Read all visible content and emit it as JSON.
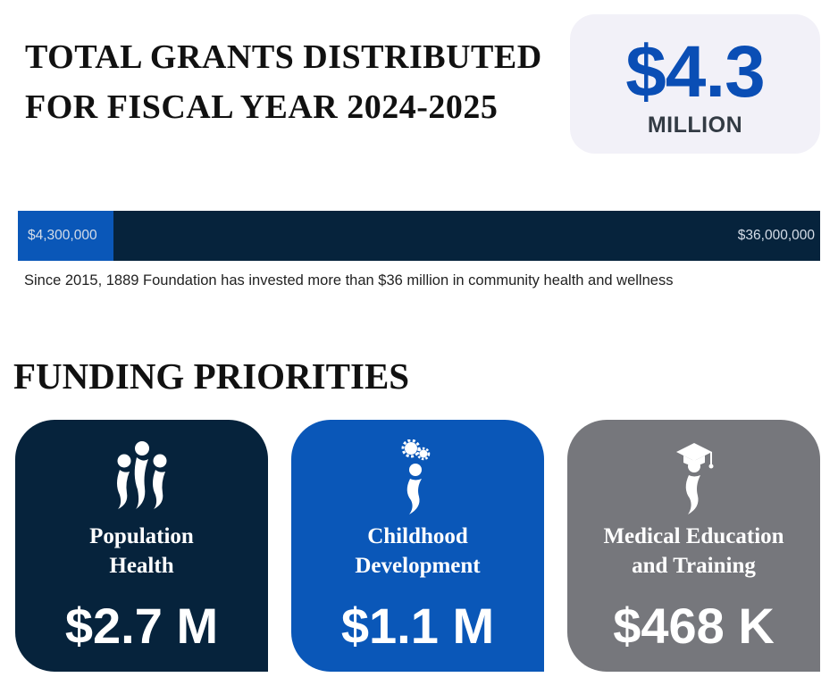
{
  "header": {
    "title": "TOTAL GRANTS DISTRIBUTED\nFOR FISCAL YEAR 2024-2025",
    "total_amount": "$4.3",
    "total_unit": "MILLION"
  },
  "progress": {
    "value": 4300000,
    "max": 36000000,
    "value_label": "$4,300,000",
    "max_label": "$36,000,000",
    "note": "Since 2015, 1889 Foundation has invested more than $36 million in community health and wellness"
  },
  "priorities": {
    "title": "FUNDING PRIORITIES",
    "cards": [
      {
        "label": "Population\nHealth",
        "amount": "$2.7 M",
        "icon": "people-group-icon",
        "color": "#06233c"
      },
      {
        "label": "Childhood\nDevelopment",
        "amount": "$1.1 M",
        "icon": "child-gears-icon",
        "color": "#0a57b8"
      },
      {
        "label": "Medical Education\nand Training",
        "amount": "$468 K",
        "icon": "graduate-icon",
        "color": "#76777c"
      }
    ]
  }
}
